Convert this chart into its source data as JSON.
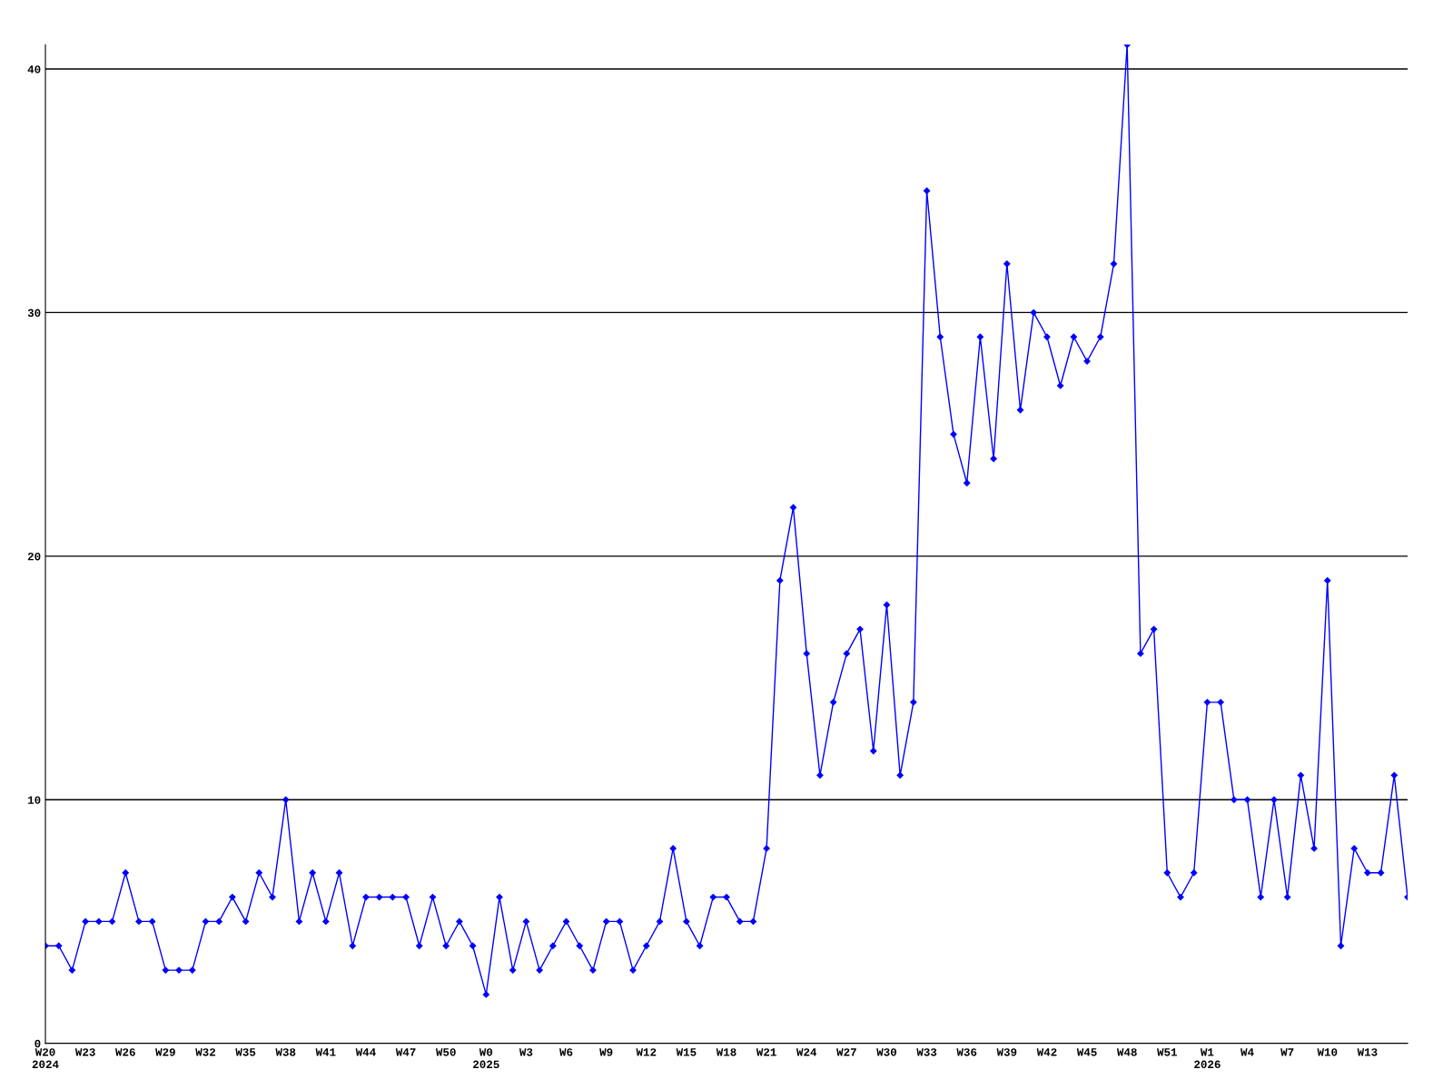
{
  "chart_data": {
    "type": "line",
    "categories": [
      "W20\n2024",
      null,
      null,
      "W23",
      null,
      null,
      "W26",
      null,
      null,
      "W29",
      null,
      null,
      "W32",
      null,
      null,
      "W35",
      null,
      null,
      "W38",
      null,
      null,
      "W41",
      null,
      null,
      "W44",
      null,
      null,
      "W47",
      null,
      null,
      "W50",
      null,
      null,
      "W0\n2025",
      null,
      null,
      "W3",
      null,
      null,
      "W6",
      null,
      null,
      "W9",
      null,
      null,
      "W12",
      null,
      null,
      "W15",
      null,
      null,
      "W18",
      null,
      null,
      "W21",
      null,
      null,
      "W24",
      null,
      null,
      "W27",
      null,
      null,
      "W30",
      null,
      null,
      "W33",
      null,
      null,
      "W36",
      null,
      null,
      "W39",
      null,
      null,
      "W42",
      null,
      null,
      "W45",
      null,
      null,
      "W48",
      null,
      null,
      "W51",
      null,
      null,
      "W1\n2026",
      null,
      null,
      "W4",
      null,
      null,
      "W7",
      null,
      null,
      "W10",
      null,
      null,
      "W13",
      null,
      null,
      null
    ],
    "series": [
      {
        "color": "#0000ff",
        "values": [
          4,
          4,
          3,
          5,
          5,
          5,
          7,
          5,
          5,
          3,
          3,
          3,
          5,
          5,
          6,
          5,
          7,
          6,
          10,
          5,
          7,
          5,
          7,
          4,
          6,
          6,
          6,
          6,
          4,
          6,
          4,
          5,
          4,
          2,
          6,
          3,
          5,
          3,
          4,
          5,
          4,
          3,
          5,
          5,
          3,
          4,
          5,
          8,
          5,
          4,
          6,
          6,
          5,
          5,
          8,
          19,
          22,
          16,
          11,
          14,
          16,
          17,
          12,
          18,
          11,
          14,
          35,
          29,
          25,
          23,
          29,
          24,
          32,
          26,
          30,
          29,
          27,
          29,
          28,
          29,
          32,
          41,
          16,
          17,
          7,
          6,
          7,
          14,
          14,
          10,
          10,
          6,
          10,
          6,
          11,
          8,
          19,
          4,
          8,
          7,
          7,
          11,
          6
        ]
      }
    ],
    "ylim": [
      0,
      41
    ],
    "yticks": [
      0,
      10,
      20,
      30,
      40
    ],
    "grid": "y",
    "marker": "diamond",
    "line_style": "solid",
    "legend": false
  }
}
